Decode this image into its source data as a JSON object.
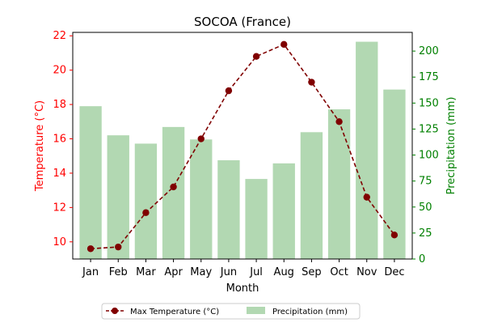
{
  "chart_data": {
    "type": "bar+line",
    "title": "SOCOA (France)",
    "xlabel": "Month",
    "ylabel_left": "Temperature (°C)",
    "ylabel_right": "Precipitation (mm)",
    "categories": [
      "Jan",
      "Feb",
      "Mar",
      "Apr",
      "May",
      "Jun",
      "Jul",
      "Aug",
      "Sep",
      "Oct",
      "Nov",
      "Dec"
    ],
    "temperature": {
      "name": "Max Temperature (°C)",
      "values": [
        9.6,
        9.7,
        11.7,
        13.2,
        16.0,
        18.8,
        20.8,
        21.5,
        19.3,
        17.0,
        12.6,
        10.4
      ],
      "color": "#800000",
      "ylim": [
        9.0,
        22.2
      ],
      "ticks": [
        10,
        12,
        14,
        16,
        18,
        20,
        22
      ]
    },
    "precipitation": {
      "name": "Precipitation (mm)",
      "values": [
        147,
        119,
        111,
        127,
        115,
        95,
        77,
        92,
        122,
        144,
        209,
        163
      ],
      "color": "#b2d8b2",
      "ylim": [
        0,
        218
      ],
      "ticks": [
        0,
        25,
        50,
        75,
        100,
        125,
        150,
        175,
        200
      ]
    },
    "left_axis_color": "#ff0000",
    "right_axis_color": "#008000",
    "legend_position": "bottom-center",
    "grid": false
  }
}
